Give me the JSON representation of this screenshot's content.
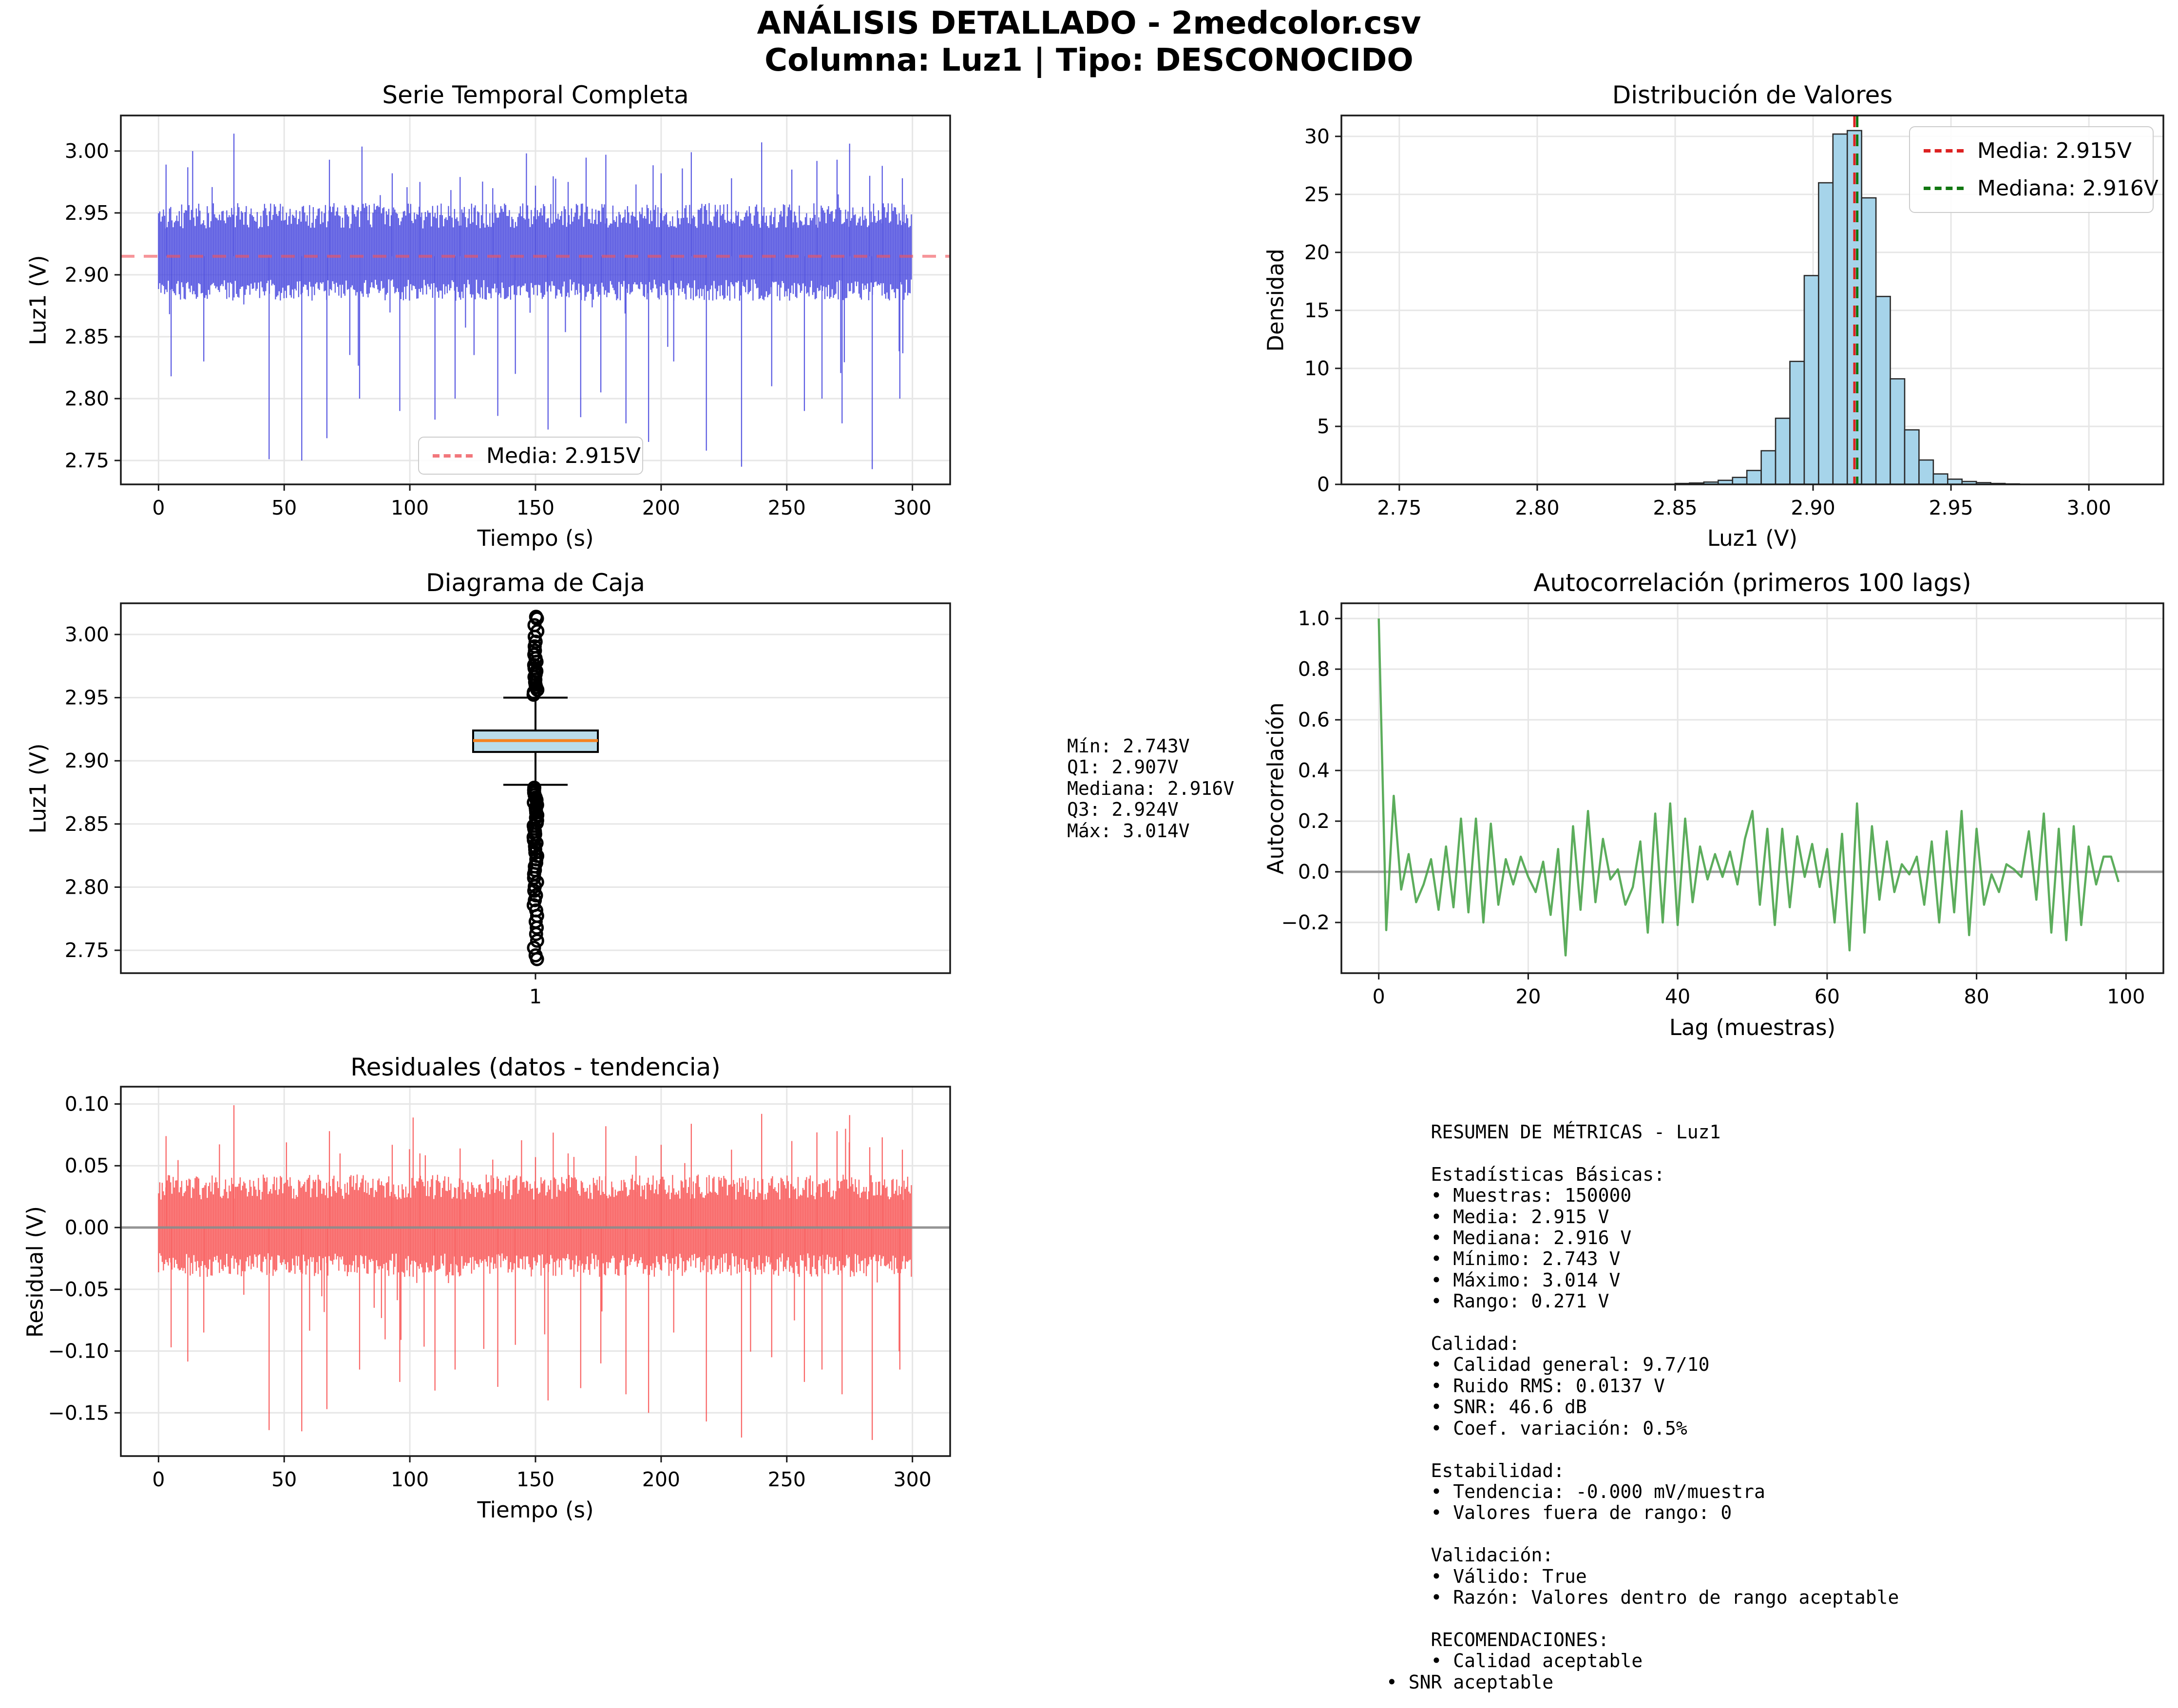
{
  "header": {
    "line1": "ANÁLISIS DETALLADO - 2medcolor.csv",
    "line2": "Columna: Luz1 | Tipo: DESCONOCIDO"
  },
  "colors": {
    "series_blue": "#4141dd",
    "mean_salmon": "#f2545b",
    "hist_fill": "#a6d4ea",
    "hist_edge": "#2b2b2b",
    "media_red": "#dd2222",
    "mediana_green": "#117711",
    "box_fill": "#b9dcea",
    "box_median_orange": "#f58220",
    "autocorr_green": "#4aa44a",
    "residual_red": "#f84c4c",
    "zero_gray": "#8c8c8c",
    "grid": "#e6e6e6"
  },
  "chart_data": [
    {
      "id": "serie_temporal",
      "type": "line",
      "title": "Serie Temporal Completa",
      "xlabel": "Tiempo (s)",
      "ylabel": "Luz1 (V)",
      "xlim": [
        -15,
        315
      ],
      "ylim": [
        2.7307,
        3.0287
      ],
      "xticks": [
        0,
        50,
        100,
        150,
        200,
        250,
        300
      ],
      "xtick_labels": [
        "0",
        "50",
        "100",
        "150",
        "200",
        "250",
        "300"
      ],
      "yticks": [
        2.75,
        2.8,
        2.85,
        2.9,
        2.95,
        3.0
      ],
      "ytick_labels": [
        "2.75",
        "2.80",
        "2.85",
        "2.90",
        "2.95",
        "3.00"
      ],
      "grid": true,
      "legend": {
        "label": "Media: 2.915V",
        "position": "lower center"
      },
      "mean_line": 2.915,
      "signal": {
        "samples": 150000,
        "duration_s": 300,
        "mean": 2.915,
        "band_low": 2.879,
        "band_high": 2.958,
        "min": 2.743,
        "max": 3.014,
        "down_spikes_t": [
          5,
          18,
          44,
          57,
          67,
          80,
          96,
          110,
          118,
          135,
          142,
          155,
          168,
          176,
          186,
          195,
          205,
          218,
          232,
          244,
          257,
          264,
          272,
          284,
          295
        ],
        "down_spike_v": [
          2.818,
          2.83,
          2.751,
          2.75,
          2.768,
          2.8,
          2.79,
          2.783,
          2.8,
          2.786,
          2.82,
          2.775,
          2.785,
          2.805,
          2.78,
          2.765,
          2.83,
          2.758,
          2.745,
          2.81,
          2.79,
          2.8,
          2.78,
          2.743,
          2.8
        ],
        "up_spikes_t": [
          3,
          30,
          68,
          93,
          104,
          120,
          133,
          150,
          163,
          178,
          190,
          200,
          212,
          228,
          240,
          252,
          262,
          270,
          275,
          283,
          288,
          296
        ],
        "up_spike_v": [
          2.989,
          3.014,
          2.993,
          2.982,
          2.975,
          2.979,
          2.97,
          2.972,
          2.975,
          2.997,
          2.973,
          2.982,
          2.999,
          2.978,
          3.007,
          2.985,
          2.992,
          2.993,
          3.006,
          2.98,
          2.988,
          2.978
        ]
      }
    },
    {
      "id": "distribucion",
      "type": "bar",
      "title": "Distribución de Valores",
      "xlabel": "Luz1 (V)",
      "ylabel": "Densidad",
      "xlim": [
        2.729,
        3.027
      ],
      "ylim": [
        0,
        31.8
      ],
      "xticks": [
        2.75,
        2.8,
        2.85,
        2.9,
        2.95,
        3.0
      ],
      "xtick_labels": [
        "2.75",
        "2.80",
        "2.85",
        "2.90",
        "2.95",
        "3.00"
      ],
      "yticks": [
        0,
        5,
        10,
        15,
        20,
        25,
        30
      ],
      "ytick_labels": [
        "0",
        "5",
        "10",
        "15",
        "20",
        "25",
        "30"
      ],
      "grid": true,
      "bin_start": 2.85,
      "bin_width": 0.0052,
      "densities": [
        0.08,
        0.12,
        0.2,
        0.35,
        0.6,
        1.2,
        2.9,
        5.7,
        10.6,
        18.0,
        26.0,
        30.2,
        30.5,
        24.7,
        16.2,
        9.1,
        4.7,
        2.1,
        0.9,
        0.45,
        0.25,
        0.15,
        0.08,
        0.04
      ],
      "mean_line": {
        "value": 2.915,
        "label": "Media: 2.915V"
      },
      "median_line": {
        "value": 2.916,
        "label": "Mediana: 2.916V"
      },
      "legend_position": "upper right"
    },
    {
      "id": "diagrama_caja",
      "type": "box",
      "title": "Diagrama de Caja",
      "ylabel": "Luz1 (V)",
      "xtick_label": "1",
      "ylim": [
        2.7319,
        3.0247
      ],
      "yticks": [
        2.75,
        2.8,
        2.85,
        2.9,
        2.95,
        3.0
      ],
      "ytick_labels": [
        "2.75",
        "2.80",
        "2.85",
        "2.90",
        "2.95",
        "3.00"
      ],
      "grid": true,
      "stats": {
        "min": 2.743,
        "q1": 2.907,
        "median": 2.916,
        "q3": 2.924,
        "max": 3.014,
        "whisker_low": 2.881,
        "whisker_high": 2.95
      },
      "annotation": "Mín: 2.743V\nQ1: 2.907V\nMediana: 2.916V\nQ3: 2.924V\nMáx: 3.014V"
    },
    {
      "id": "autocorrelacion",
      "type": "line",
      "title": "Autocorrelación (primeros 100 lags)",
      "xlabel": "Lag (muestras)",
      "ylabel": "Autocorrelación",
      "xlim": [
        -5,
        105
      ],
      "ylim": [
        -0.4,
        1.06
      ],
      "xticks": [
        0,
        20,
        40,
        60,
        80,
        100
      ],
      "xtick_labels": [
        "0",
        "20",
        "40",
        "60",
        "80",
        "100"
      ],
      "yticks": [
        -0.2,
        0.0,
        0.2,
        0.4,
        0.6,
        0.8,
        1.0
      ],
      "ytick_labels": [
        "−0.2",
        "0.0",
        "0.2",
        "0.4",
        "0.6",
        "0.8",
        "1.0"
      ],
      "grid": true,
      "zero_line": 0,
      "values": [
        1.0,
        -0.23,
        0.3,
        -0.07,
        0.07,
        -0.12,
        -0.05,
        0.05,
        -0.15,
        0.1,
        -0.14,
        0.21,
        -0.16,
        0.21,
        -0.2,
        0.19,
        -0.13,
        0.05,
        -0.05,
        0.06,
        -0.02,
        -0.08,
        0.04,
        -0.17,
        0.09,
        -0.33,
        0.18,
        -0.15,
        0.24,
        -0.12,
        0.13,
        -0.03,
        0.01,
        -0.13,
        -0.06,
        0.12,
        -0.24,
        0.23,
        -0.2,
        0.27,
        -0.21,
        0.21,
        -0.12,
        0.1,
        -0.03,
        0.07,
        -0.02,
        0.08,
        -0.05,
        0.13,
        0.24,
        -0.13,
        0.17,
        -0.21,
        0.17,
        -0.14,
        0.14,
        -0.02,
        0.11,
        -0.06,
        0.09,
        -0.2,
        0.15,
        -0.31,
        0.27,
        -0.24,
        0.18,
        -0.11,
        0.12,
        -0.08,
        0.03,
        -0.01,
        0.06,
        -0.13,
        0.12,
        -0.2,
        0.16,
        -0.16,
        0.24,
        -0.25,
        0.17,
        -0.13,
        -0.01,
        -0.08,
        0.03,
        0.01,
        -0.02,
        0.16,
        -0.11,
        0.23,
        -0.24,
        0.17,
        -0.27,
        0.18,
        -0.21,
        0.1,
        -0.05,
        0.06,
        0.06,
        -0.04
      ]
    },
    {
      "id": "residuales",
      "type": "line",
      "title": "Residuales (datos - tendencia)",
      "xlabel": "Tiempo (s)",
      "ylabel": "Residual (V)",
      "xlim": [
        -15,
        315
      ],
      "ylim": [
        -0.185,
        0.114
      ],
      "xticks": [
        0,
        50,
        100,
        150,
        200,
        250,
        300
      ],
      "xtick_labels": [
        "0",
        "50",
        "100",
        "150",
        "200",
        "250",
        "300"
      ],
      "yticks": [
        -0.15,
        -0.1,
        -0.05,
        0.0,
        0.05,
        0.1
      ],
      "ytick_labels": [
        "−0.15",
        "−0.10",
        "−0.05",
        "0.00",
        "0.05",
        "0.10"
      ],
      "grid": true,
      "zero_line": 0,
      "signal": {
        "duration_s": 300,
        "mean": 0,
        "band_low": -0.04,
        "band_high": 0.043,
        "min": -0.172,
        "max": 0.099,
        "rms": 0.0137,
        "down_spikes_t": [
          5,
          18,
          44,
          57,
          67,
          80,
          96,
          110,
          118,
          135,
          142,
          155,
          168,
          176,
          186,
          195,
          205,
          218,
          232,
          244,
          257,
          264,
          272,
          284,
          295
        ],
        "down_spike_v": [
          -0.097,
          -0.085,
          -0.164,
          -0.165,
          -0.147,
          -0.115,
          -0.125,
          -0.132,
          -0.115,
          -0.129,
          -0.095,
          -0.14,
          -0.13,
          -0.11,
          -0.135,
          -0.15,
          -0.085,
          -0.157,
          -0.17,
          -0.105,
          -0.125,
          -0.115,
          -0.135,
          -0.172,
          -0.115
        ],
        "up_spikes_t": [
          3,
          30,
          68,
          93,
          104,
          120,
          133,
          150,
          163,
          178,
          190,
          200,
          212,
          228,
          240,
          252,
          262,
          270,
          275,
          283,
          288,
          296
        ],
        "up_spike_v": [
          0.074,
          0.099,
          0.078,
          0.067,
          0.06,
          0.064,
          0.055,
          0.057,
          0.06,
          0.082,
          0.058,
          0.067,
          0.084,
          0.063,
          0.092,
          0.07,
          0.077,
          0.078,
          0.091,
          0.065,
          0.073,
          0.063
        ]
      }
    }
  ],
  "legends": {
    "serie_media": "Media: 2.915V",
    "dist_media": "Media: 2.915V",
    "dist_mediana": "Mediana: 2.916V"
  },
  "panels": {
    "resumen": {
      "text": "    RESUMEN DE MÉTRICAS - Luz1\n\n    Estadísticas Básicas:\n    • Muestras: 150000\n    • Media: 2.915 V\n    • Mediana: 2.916 V\n    • Mínimo: 2.743 V\n    • Máximo: 3.014 V\n    • Rango: 0.271 V\n\n    Calidad:\n    • Calidad general: 9.7/10\n    • Ruido RMS: 0.0137 V\n    • SNR: 46.6 dB\n    • Coef. variación: 0.5%\n\n    Estabilidad:\n    • Tendencia: -0.000 mV/muestra\n    • Valores fuera de rango: 0\n\n    Validación:\n    • Válido: True\n    • Razón: Valores dentro de rango aceptable\n\n    RECOMENDACIONES:\n    • Calidad aceptable\n• SNR aceptable"
    }
  }
}
